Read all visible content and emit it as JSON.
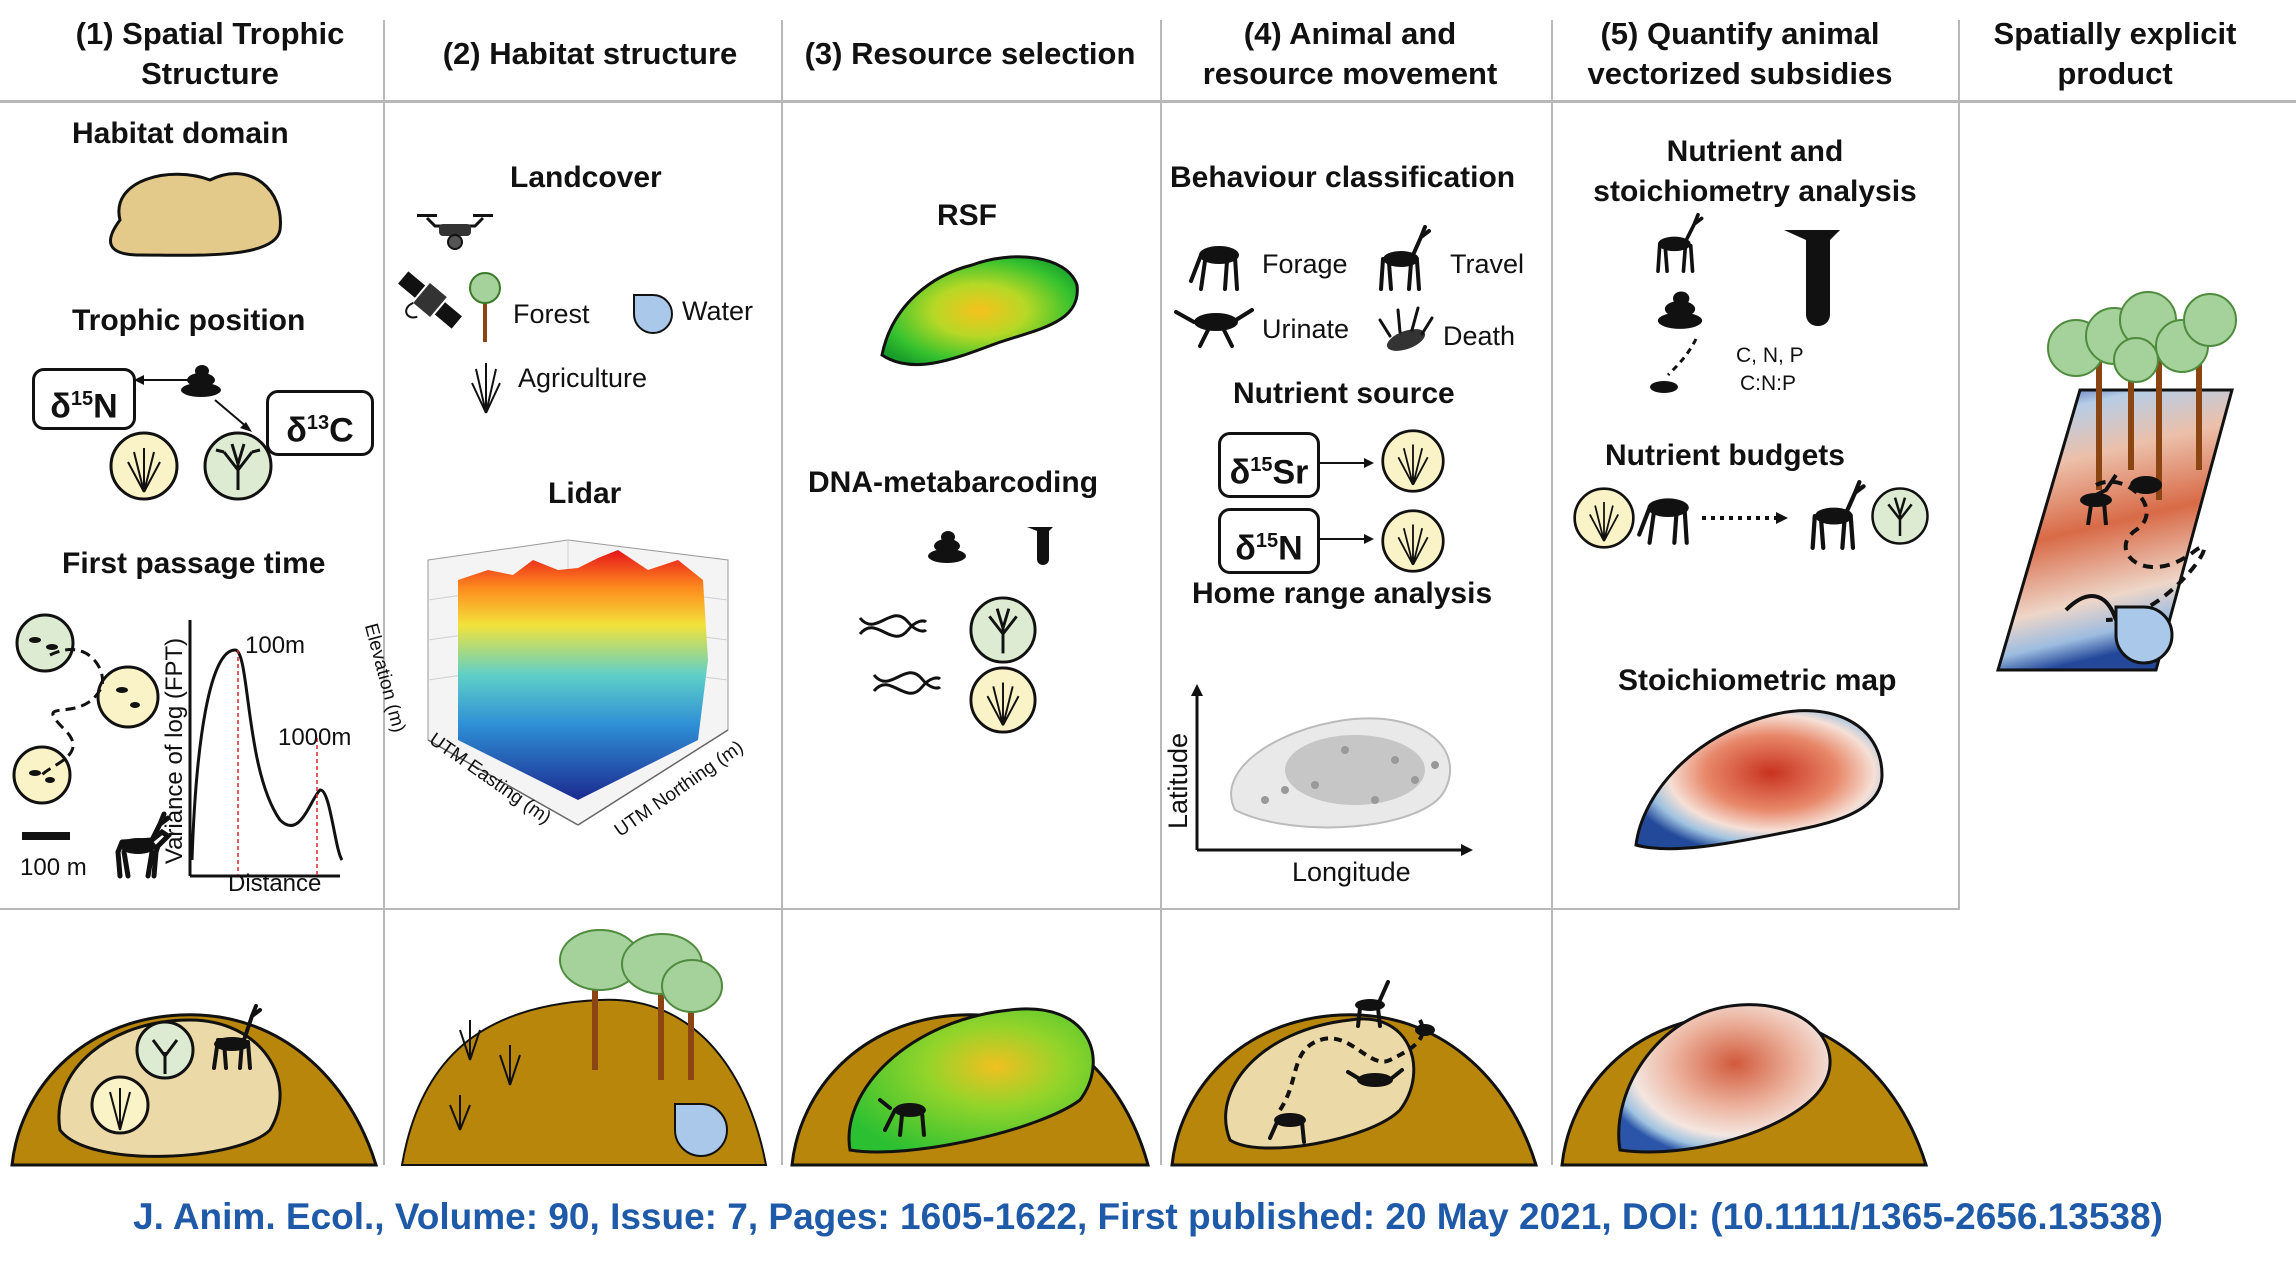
{
  "columns": [
    {
      "title": "(1) Spatial Trophic Structure"
    },
    {
      "title": "(2) Habitat structure"
    },
    {
      "title": "(3) Resource selection"
    },
    {
      "title": "(4) Animal and resource movement"
    },
    {
      "title": "(5) Quantify animal vectorized subsidies"
    },
    {
      "title": "Spatially explicit product"
    }
  ],
  "col1": {
    "habitat_domain": "Habitat domain",
    "trophic_position": "Trophic position",
    "iso_n_prefix": "δ",
    "iso_n_sup": "15",
    "iso_n_el": "N",
    "iso_c_prefix": "δ",
    "iso_c_sup": "13",
    "iso_c_el": "C",
    "first_passage_time": "First passage time",
    "fpt_ylabel": "Variance of log (FPT)",
    "fpt_xlabel": "Distance",
    "peak1": "100m",
    "peak2": "1000m",
    "scale_bar": "100 m"
  },
  "col2": {
    "landcover": "Landcover",
    "forest": "Forest",
    "water": "Water",
    "agriculture": "Agriculture",
    "lidar": "Lidar",
    "elevation": "Elevation (m)",
    "utm_easting": "UTM Easting (m)",
    "utm_northing": "UTM Northing (m)"
  },
  "col3": {
    "rsf": "RSF",
    "dna": "DNA-metabarcoding"
  },
  "col4": {
    "behaviour": "Behaviour classification",
    "forage": "Forage",
    "travel": "Travel",
    "urinate": "Urinate",
    "death": "Death",
    "nutrient_source": "Nutrient source",
    "iso_sr_prefix": "δ",
    "iso_sr_sup": "15",
    "iso_sr_el": "Sr",
    "iso_n2_prefix": "δ",
    "iso_n2_sup": "15",
    "iso_n2_el": "N",
    "home_range": "Home range analysis",
    "latitude": "Latitude",
    "longitude": "Longitude"
  },
  "col5": {
    "nutrient_stoich": "Nutrient and stoichiometry analysis",
    "cnp": "C, N, P",
    "cnp_ratio": "C:N:P",
    "nutrient_budgets": "Nutrient budgets",
    "stoich_map": "Stoichiometric map"
  },
  "citation": "J. Anim. Ecol., Volume: 90, Issue: 7, Pages: 1605-1622, First published: 20 May 2021, DOI: (10.1111/1365-2656.13538)",
  "colors": {
    "domain_fill": "#e3c98a",
    "hill_fill": "#b8860b",
    "inner_fill": "#ecd9a8",
    "tree_canopy": "#a5d19a",
    "water": "#a9c8ea",
    "citation": "#1f5aa8",
    "circle_plant": "#fbf3c8",
    "circle_tree": "#dcebd2"
  }
}
